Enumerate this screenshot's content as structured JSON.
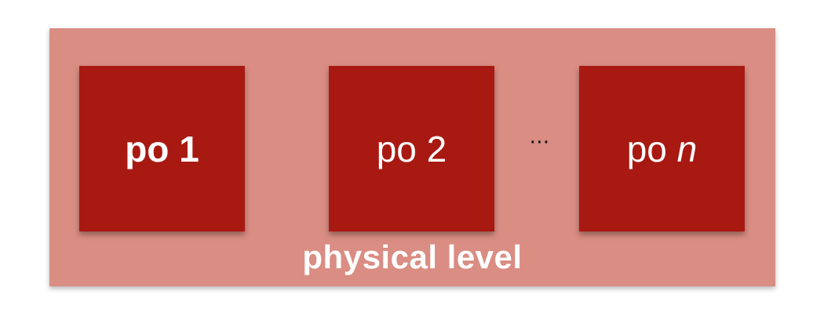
{
  "diagram": {
    "nodes": [
      {
        "prefix": "po ",
        "suffix": "1"
      },
      {
        "prefix": "po ",
        "suffix": "2"
      },
      {
        "prefix": "po ",
        "suffix": "n"
      }
    ],
    "ellipsis": "⋯",
    "level_label": "physical level",
    "colors": {
      "panel": "#da8d83",
      "node": "#a81912",
      "text": "#ffffff"
    }
  }
}
